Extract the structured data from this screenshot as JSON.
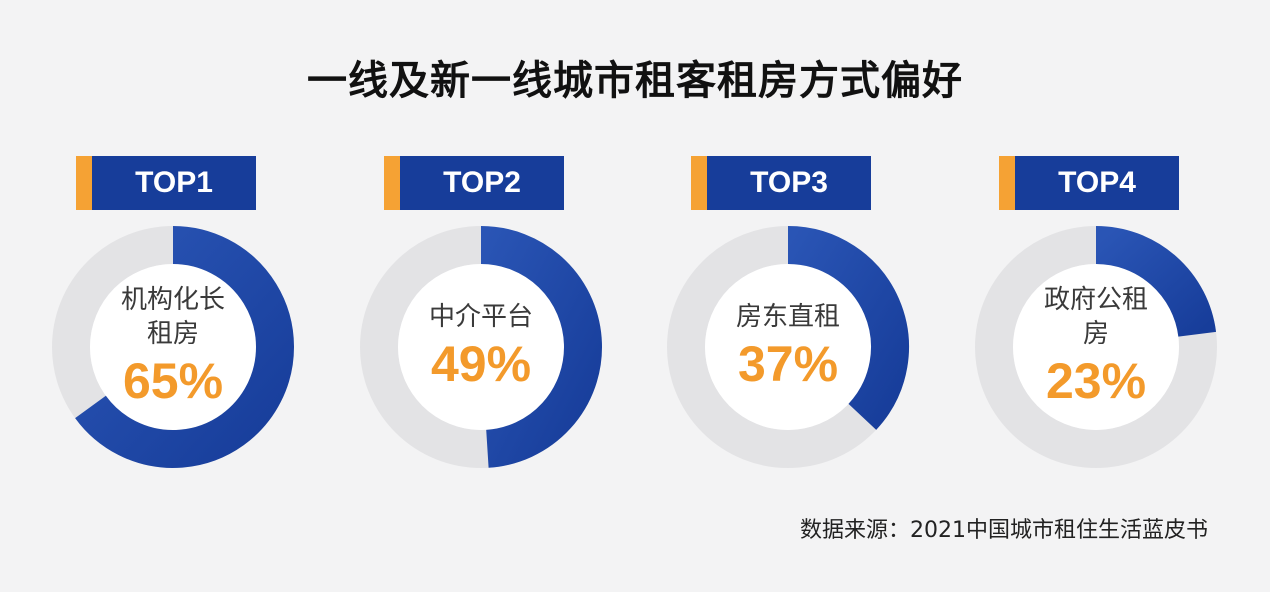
{
  "page": {
    "title": "一线及新一线城市租客租房方式偏好",
    "source": "数据来源：2021中国城市租住生活蓝皮书"
  },
  "colors": {
    "ring_fill": "#173d9a",
    "ring_fill_light": "#2a55b5",
    "ring_track": "#e3e3e5",
    "badge_bg": "#173d9a",
    "badge_accent": "#f5a234",
    "percent_text": "#f39a2b"
  },
  "chart_data": {
    "type": "pie",
    "title": "一线及新一线城市租客租房方式偏好",
    "items": [
      {
        "rank_label": "TOP1",
        "category": "机构化长租房",
        "value": 65,
        "value_label": "65%"
      },
      {
        "rank_label": "TOP2",
        "category": "中介平台",
        "value": 49,
        "value_label": "49%"
      },
      {
        "rank_label": "TOP3",
        "category": "房东直租",
        "value": 37,
        "value_label": "37%"
      },
      {
        "rank_label": "TOP4",
        "category": "政府公租房",
        "value": 23,
        "value_label": "23%"
      }
    ]
  }
}
